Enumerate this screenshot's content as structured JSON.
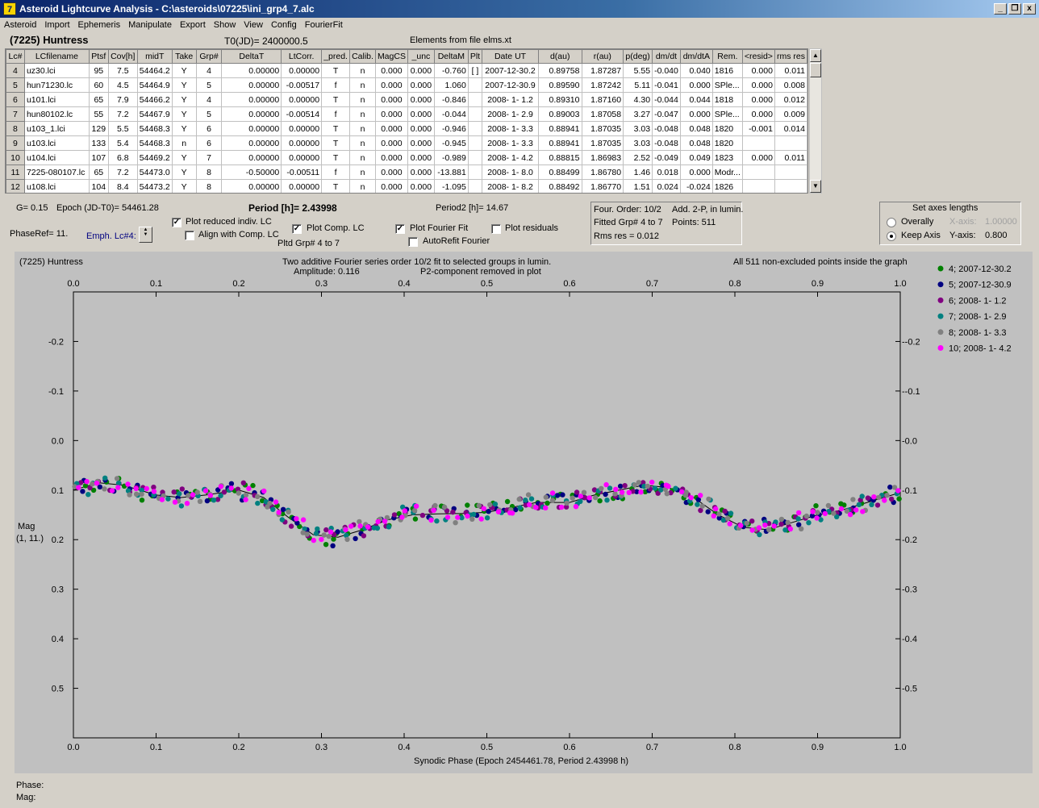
{
  "window": {
    "title": "Asteroid Lightcurve Analysis - C:\\asteroids\\07225\\ini_grp4_7.alc",
    "app_icon": "7"
  },
  "menu": [
    "Asteroid",
    "Import",
    "Ephemeris",
    "Manipulate",
    "Export",
    "Show",
    "View",
    "Config",
    "FourierFit"
  ],
  "header": {
    "asteroid_name": "(7225) Huntress",
    "t0": "T0(JD)= 2400000.5",
    "elements": "Elements from file elms.xt"
  },
  "table": {
    "columns": [
      "Lc#",
      "LCfilename",
      "Ptsf",
      "Cov[h]",
      "midT",
      "Take",
      "Grp#",
      "DeltaT",
      "LtCorr.",
      "_pred.",
      "Calib.",
      "MagCS",
      "_unc",
      "DeltaM",
      "Plt",
      "Date UT",
      "d(au)",
      "r(au)",
      "p(deg)",
      "dm/dt",
      "dm/dtA",
      "Rem.",
      "<resid>",
      "rms res"
    ],
    "rows": [
      [
        "4",
        "uz30.lci",
        "95",
        "7.5",
        "54464.2",
        "Y",
        "4",
        "0.00000",
        "0.00000",
        "T",
        "n",
        "0.000",
        "0.000",
        "-0.760",
        "[ ]",
        "2007-12-30.2",
        "0.89758",
        "1.87287",
        "5.55",
        "-0.040",
        "0.040",
        "1816",
        "0.000",
        "0.011"
      ],
      [
        "5",
        "hun71230.lc",
        "60",
        "4.5",
        "54464.9",
        "Y",
        "5",
        "0.00000",
        "-0.00517",
        "f",
        "n",
        "0.000",
        "0.000",
        "1.060",
        "",
        "2007-12-30.9",
        "0.89590",
        "1.87242",
        "5.11",
        "-0.041",
        "0.000",
        "SPle...",
        "0.000",
        "0.008"
      ],
      [
        "6",
        "u101.lci",
        "65",
        "7.9",
        "54466.2",
        "Y",
        "4",
        "0.00000",
        "0.00000",
        "T",
        "n",
        "0.000",
        "0.000",
        "-0.846",
        "",
        "2008- 1- 1.2",
        "0.89310",
        "1.87160",
        "4.30",
        "-0.044",
        "0.044",
        "1818",
        "0.000",
        "0.012"
      ],
      [
        "7",
        "hun80102.lc",
        "55",
        "7.2",
        "54467.9",
        "Y",
        "5",
        "0.00000",
        "-0.00514",
        "f",
        "n",
        "0.000",
        "0.000",
        "-0.044",
        "",
        "2008- 1- 2.9",
        "0.89003",
        "1.87058",
        "3.27",
        "-0.047",
        "0.000",
        "SPle...",
        "0.000",
        "0.009"
      ],
      [
        "8",
        "u103_1.lci",
        "129",
        "5.5",
        "54468.3",
        "Y",
        "6",
        "0.00000",
        "0.00000",
        "T",
        "n",
        "0.000",
        "0.000",
        "-0.946",
        "",
        "2008- 1- 3.3",
        "0.88941",
        "1.87035",
        "3.03",
        "-0.048",
        "0.048",
        "1820",
        "-0.001",
        "0.014"
      ],
      [
        "9",
        "u103.lci",
        "133",
        "5.4",
        "54468.3",
        "n",
        "6",
        "0.00000",
        "0.00000",
        "T",
        "n",
        "0.000",
        "0.000",
        "-0.945",
        "",
        "2008- 1- 3.3",
        "0.88941",
        "1.87035",
        "3.03",
        "-0.048",
        "0.048",
        "1820",
        "",
        ""
      ],
      [
        "10",
        "u104.lci",
        "107",
        "6.8",
        "54469.2",
        "Y",
        "7",
        "0.00000",
        "0.00000",
        "T",
        "n",
        "0.000",
        "0.000",
        "-0.989",
        "",
        "2008- 1- 4.2",
        "0.88815",
        "1.86983",
        "2.52",
        "-0.049",
        "0.049",
        "1823",
        "0.000",
        "0.011"
      ],
      [
        "11",
        "7225-080107.lc",
        "65",
        "7.2",
        "54473.0",
        "Y",
        "8",
        "-0.50000",
        "-0.00511",
        "f",
        "n",
        "0.000",
        "0.000",
        "-13.881",
        "",
        "2008- 1- 8.0",
        "0.88499",
        "1.86780",
        "1.46",
        "0.018",
        "0.000",
        "Modr...",
        "",
        ""
      ],
      [
        "12",
        "u108.lci",
        "104",
        "8.4",
        "54473.2",
        "Y",
        "8",
        "0.00000",
        "0.00000",
        "T",
        "n",
        "0.000",
        "0.000",
        "-1.095",
        "",
        "2008- 1- 8.2",
        "0.88492",
        "1.86770",
        "1.51",
        "0.024",
        "-0.024",
        "1826",
        "",
        ""
      ]
    ]
  },
  "controls": {
    "g_value": "G= 0.15",
    "epoch": "Epoch (JD-T0)= 54461.28",
    "period": "Period [h]= 2.43998",
    "period2": "Period2 [h]= 14.67",
    "phase_ref": "PhaseRef= 11.",
    "emph": "Emph. Lc#4:",
    "plot_reduced": "Plot reduced indiv. LC",
    "align_comp": "Align with Comp. LC",
    "plot_comp": "Plot Comp. LC",
    "pltd_grp": "Pltd Grp#  4  to   7",
    "plot_fourier": "Plot Fourier Fit",
    "autorefit": "AutoRefit Fourier",
    "plot_residuals": "Plot residuals"
  },
  "fourier_info": {
    "order": "Four. Order: 10/2",
    "add": "Add. 2-P, in lumin.",
    "fitted": "Fitted Grp# 4 to 7",
    "points": "Points: 511",
    "rms": "Rms res     = 0.012"
  },
  "axes_panel": {
    "title": "Set axes lengths",
    "overally": "Overally",
    "keep_axis": "Keep Axis",
    "x_axis_label": "X-axis:",
    "x_axis_value": "1.00000",
    "y_axis_label": "Y-axis:",
    "y_axis_value": "0.800"
  },
  "plot": {
    "name": "(7225) Huntress",
    "caption1": "Two additive Fourier series order 10/2 fit to selected groups in lumin.",
    "caption2_a": "Amplitude: 0.116",
    "caption2_b": "P2-component removed in plot",
    "points_note": "All 511 non-excluded points inside the graph",
    "mag_label": "Mag",
    "mag_sub": "(1, 11.)",
    "xlabel": "Synodic Phase (Epoch 2454461.78, Period 2.43998 h)"
  },
  "status": {
    "phase": "Phase:",
    "mag": "Mag:"
  },
  "chart_data": {
    "type": "scatter",
    "title": "Two additive Fourier series order 10/2 fit to selected groups in lumin.",
    "xlabel": "Synodic Phase (Epoch 2454461.78, Period 2.43998 h)",
    "ylabel": "Mag",
    "xlim": [
      0.0,
      1.0
    ],
    "ylim": [
      0.6,
      -0.3
    ],
    "y_inverted": true,
    "x_ticks": [
      "0.0",
      "0.1",
      "0.2",
      "0.3",
      "0.4",
      "0.5",
      "0.6",
      "0.7",
      "0.8",
      "0.9",
      "1.0"
    ],
    "y_ticks": [
      "-0.2",
      "-0.1",
      "0.0",
      "0.1",
      "0.2",
      "0.3",
      "0.4",
      "0.5"
    ],
    "fit_curve": {
      "name": "Fourier fit",
      "x": [
        0.0,
        0.03,
        0.06,
        0.1,
        0.13,
        0.16,
        0.2,
        0.23,
        0.26,
        0.29,
        0.32,
        0.35,
        0.38,
        0.41,
        0.44,
        0.47,
        0.5,
        0.53,
        0.56,
        0.6,
        0.63,
        0.66,
        0.69,
        0.72,
        0.75,
        0.78,
        0.81,
        0.84,
        0.87,
        0.9,
        0.93,
        0.96,
        1.0
      ],
      "y": [
        0.1,
        0.085,
        0.09,
        0.11,
        0.115,
        0.11,
        0.1,
        0.115,
        0.155,
        0.19,
        0.195,
        0.18,
        0.16,
        0.15,
        0.148,
        0.147,
        0.145,
        0.135,
        0.125,
        0.125,
        0.11,
        0.1,
        0.09,
        0.095,
        0.115,
        0.15,
        0.175,
        0.18,
        0.165,
        0.15,
        0.14,
        0.125,
        0.105
      ],
      "color": "#000000"
    },
    "series": [
      {
        "name": "4; 2007-12-30.2",
        "color": "#008000"
      },
      {
        "name": "5; 2007-12-30.9",
        "color": "#000080"
      },
      {
        "name": "6; 2008- 1- 1.2",
        "color": "#800080"
      },
      {
        "name": "7; 2008- 1- 2.9",
        "color": "#008080"
      },
      {
        "name": "8; 2008- 1- 3.3",
        "color": "#808080"
      },
      {
        "name": "10; 2008- 1- 4.2",
        "color": "#ff00ff"
      }
    ],
    "legend_position": "right"
  }
}
